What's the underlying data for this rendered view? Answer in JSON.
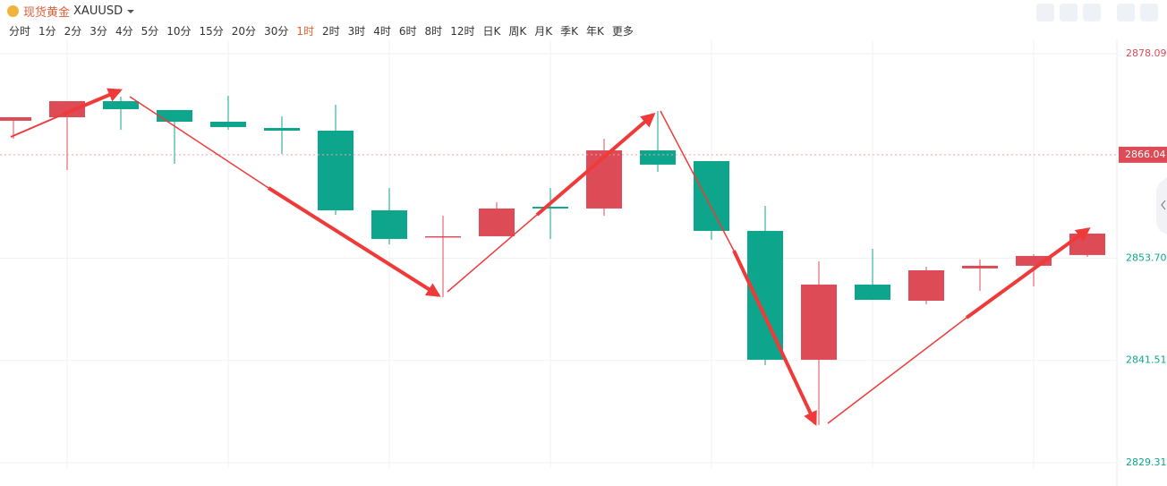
{
  "header": {
    "name": "现货黄金",
    "symbol": "XAUUSD"
  },
  "tabs": [
    {
      "label": "分时"
    },
    {
      "label": "1分"
    },
    {
      "label": "2分"
    },
    {
      "label": "3分"
    },
    {
      "label": "4分"
    },
    {
      "label": "5分"
    },
    {
      "label": "10分"
    },
    {
      "label": "15分"
    },
    {
      "label": "20分"
    },
    {
      "label": "30分"
    },
    {
      "label": "1时",
      "selected": true
    },
    {
      "label": "2时"
    },
    {
      "label": "3时"
    },
    {
      "label": "4时"
    },
    {
      "label": "6时"
    },
    {
      "label": "8时"
    },
    {
      "label": "12时"
    },
    {
      "label": "日K"
    },
    {
      "label": "周K"
    },
    {
      "label": "月K"
    },
    {
      "label": "季K"
    },
    {
      "label": "年K"
    },
    {
      "label": "更多"
    }
  ],
  "chart_data": {
    "type": "candlestick",
    "open": [
      2870.09,
      2870.51,
      2872.43,
      2871.37,
      2869.98,
      2869.23,
      2868.91,
      2859.41,
      2856.21,
      2856.32,
      2859.84,
      2859.63,
      2866.56,
      2865.28,
      2856.96,
      2841.59,
      2850.56,
      2848.63,
      2852.48,
      2852.8,
      2854.08
    ],
    "high": [
      2870.51,
      2872.43,
      2872.97,
      2871.37,
      2873.07,
      2870.62,
      2872.01,
      2862.08,
      2858.77,
      2860.37,
      2862.08,
      2867.95,
      2871.26,
      2865.28,
      2859.95,
      2853.33,
      2854.82,
      2852.69,
      2853.54,
      2854.18,
      2857.17
    ],
    "low": [
      2867.95,
      2864.22,
      2869.02,
      2864.96,
      2869.02,
      2866.14,
      2858.88,
      2855.36,
      2849.06,
      2856.32,
      2856.0,
      2858.77,
      2864.0,
      2855.89,
      2840.95,
      2833.8,
      2848.74,
      2848.21,
      2849.81,
      2850.34,
      2853.86
    ],
    "close": [
      2870.51,
      2872.43,
      2871.47,
      2869.98,
      2869.34,
      2868.91,
      2859.41,
      2856.0,
      2856.32,
      2859.63,
      2859.63,
      2866.56,
      2864.86,
      2856.96,
      2841.59,
      2850.56,
      2848.74,
      2852.26,
      2852.8,
      2853.97,
      2856.64
    ],
    "up_color": "#dd4b57",
    "down_color": "#0da58b",
    "ylim": [
      2829.31,
      2878.09
    ],
    "yticks": [
      2878.09,
      {
        "value": 2853.7,
        "label": "2853.70"
      },
      2841.51,
      2829.31
    ],
    "last_price": 2866.04,
    "grid": true
  }
}
